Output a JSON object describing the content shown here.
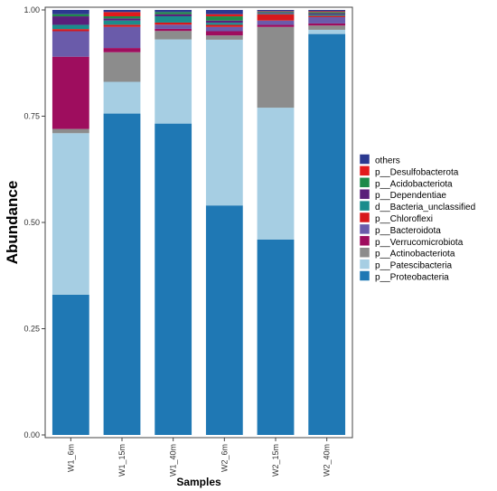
{
  "chart_data": {
    "type": "bar",
    "stacked": true,
    "xlabel": "Samples",
    "ylabel": "Abundance",
    "ylim": [
      0,
      1
    ],
    "yticks": [
      "0.00",
      "0.25",
      "0.50",
      "0.75",
      "1.00"
    ],
    "grid": false,
    "legend_position": "right",
    "categories": [
      "W1_6m",
      "W1_15m",
      "W1_40m",
      "W2_6m",
      "W2_15m",
      "W2_40m"
    ],
    "series": [
      {
        "name": "p__Proteobacteria",
        "color": "#1F78B4",
        "values": [
          0.33,
          0.76,
          0.74,
          0.54,
          0.46,
          0.95
        ]
      },
      {
        "name": "p__Patescibacteria",
        "color": "#A6CEE3",
        "values": [
          0.38,
          0.075,
          0.2,
          0.39,
          0.31,
          0.01
        ]
      },
      {
        "name": "p__Actinobacteriota",
        "color": "#8C8C8C",
        "values": [
          0.01,
          0.07,
          0.02,
          0.01,
          0.19,
          0.01
        ]
      },
      {
        "name": "p__Verrucomicrobiota",
        "color": "#9E0D5E",
        "values": [
          0.17,
          0.01,
          0.005,
          0.01,
          0.005,
          0.005
        ]
      },
      {
        "name": "p__Bacteroidota",
        "color": "#6A5BAA",
        "values": [
          0.06,
          0.05,
          0.01,
          0.01,
          0.01,
          0.015
        ]
      },
      {
        "name": "p__Chloroflexi",
        "color": "#D7191C",
        "values": [
          0.005,
          0.005,
          0.005,
          0.005,
          0.015,
          0.003
        ]
      },
      {
        "name": "d__Bacteria_unclassified",
        "color": "#1B8C8C",
        "values": [
          0.01,
          0.01,
          0.015,
          0.005,
          0.002,
          0.003
        ]
      },
      {
        "name": "p__Dependentiae",
        "color": "#5A1F7A",
        "values": [
          0.02,
          0.005,
          0.005,
          0.005,
          0.002,
          0.003
        ]
      },
      {
        "name": "p__Acidobacteriota",
        "color": "#1E8A4A",
        "values": [
          0.005,
          0.005,
          0.005,
          0.01,
          0.002,
          0.003
        ]
      },
      {
        "name": "p__Desulfobacterota",
        "color": "#E31A1C",
        "values": [
          0.0,
          0.01,
          0.0,
          0.005,
          0.001,
          0.002
        ]
      },
      {
        "name": "others",
        "color": "#2B3990",
        "values": [
          0.01,
          0.005,
          0.005,
          0.01,
          0.003,
          0.003
        ]
      }
    ]
  }
}
